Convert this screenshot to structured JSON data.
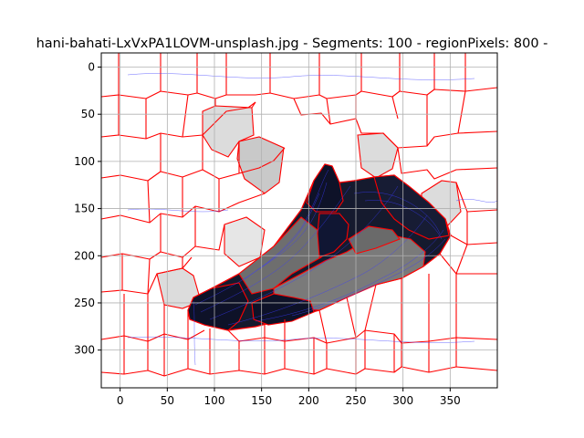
{
  "chart_data": {
    "type": "heatmap",
    "title": "hani-bahati-LxVxPA1LOVM-unsplash.jpg - Segments: 100 - regionPixels: 800 -",
    "xlabel": "",
    "ylabel": "",
    "xlim": [
      -20,
      400
    ],
    "ylim": [
      340,
      -15
    ],
    "y_inverted": true,
    "grid": true,
    "x_ticks": [
      0,
      50,
      100,
      150,
      200,
      250,
      300,
      350
    ],
    "y_ticks": [
      0,
      50,
      100,
      150,
      200,
      250,
      300
    ],
    "x_tick_labels": [
      "0",
      "50",
      "100",
      "150",
      "200",
      "250",
      "300",
      "350"
    ],
    "y_tick_labels": [
      "0",
      "50",
      "100",
      "150",
      "200",
      "250",
      "300"
    ],
    "segment_boundary_color": "#ff0000",
    "contour_color": "#3a3aff",
    "shoe_colors": {
      "dark": "#151a2e",
      "mid": "#7a7a7a",
      "light_region": "#dcdcdc"
    }
  }
}
